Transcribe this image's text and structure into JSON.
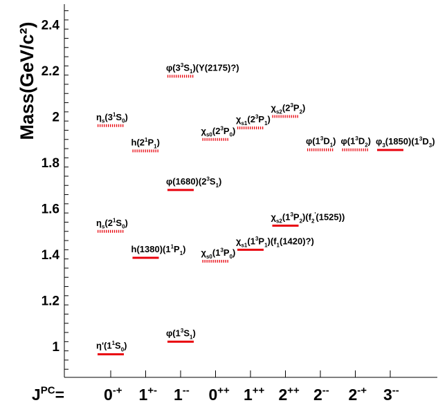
{
  "chart_data": {
    "type": "scatter",
    "ylabel": "Mass(GeV/c²)",
    "ylim": [
      0.82,
      2.5
    ],
    "y_ticks": [
      1.0,
      1.2,
      1.4,
      1.6,
      1.8,
      2.0,
      2.2,
      2.4
    ],
    "y_tick_labels": [
      "1",
      "1.2",
      "1.4",
      "1.6",
      "1.8",
      "2",
      "2.2",
      "2.4"
    ],
    "x_axis_prefix": {
      "base": "J",
      "sup": "PC",
      "tail": "="
    },
    "categories": [
      {
        "base": "0",
        "sup": "-+"
      },
      {
        "base": "1",
        "sup": "+-"
      },
      {
        "base": "1",
        "sup": "--"
      },
      {
        "base": "0",
        "sup": "++"
      },
      {
        "base": "1",
        "sup": "++"
      },
      {
        "base": "2",
        "sup": "++"
      },
      {
        "base": "2",
        "sup": "--"
      },
      {
        "base": "2",
        "sup": "-+"
      },
      {
        "base": "3",
        "sup": "--"
      }
    ],
    "legend_style": {
      "observed": "solid red line",
      "predicted": "dotted red line"
    },
    "colors": {
      "level": "#e8000b",
      "axis": "#000000"
    },
    "levels": [
      {
        "x": 0.0,
        "mass": 0.965,
        "style": "observed",
        "label": [
          [
            "η'(1",
            ""
          ],
          [
            "1",
            "sup"
          ],
          [
            "S",
            ""
          ],
          [
            "0",
            "sub"
          ],
          [
            ")",
            ""
          ]
        ]
      },
      {
        "x": 0.0,
        "mass": 1.5,
        "style": "predicted",
        "label": [
          [
            "η",
            ""
          ],
          [
            "s",
            "sub"
          ],
          [
            "(2",
            ""
          ],
          [
            "1",
            "sup"
          ],
          [
            "S",
            ""
          ],
          [
            "0",
            "sub"
          ],
          [
            ")",
            ""
          ]
        ]
      },
      {
        "x": 0.0,
        "mass": 1.96,
        "style": "predicted",
        "label": [
          [
            "η",
            ""
          ],
          [
            "s",
            "sub"
          ],
          [
            "(3",
            ""
          ],
          [
            "1",
            "sup"
          ],
          [
            "S",
            ""
          ],
          [
            "0",
            "sub"
          ],
          [
            ")",
            ""
          ]
        ]
      },
      {
        "x": 1.0,
        "mass": 1.385,
        "style": "observed",
        "label": [
          [
            "h(1380)(1",
            ""
          ],
          [
            "1",
            "sup"
          ],
          [
            "P",
            ""
          ],
          [
            "1",
            "sub"
          ],
          [
            ")",
            ""
          ]
        ]
      },
      {
        "x": 1.0,
        "mass": 1.85,
        "style": "predicted",
        "label": [
          [
            "h(2",
            ""
          ],
          [
            "1",
            "sup"
          ],
          [
            "P",
            ""
          ],
          [
            "1",
            "sub"
          ],
          [
            ")",
            ""
          ]
        ]
      },
      {
        "x": 2.0,
        "mass": 1.02,
        "style": "observed",
        "label": [
          [
            "φ(1",
            ""
          ],
          [
            "3",
            "sup"
          ],
          [
            "S",
            ""
          ],
          [
            "1",
            "sub"
          ],
          [
            ")",
            ""
          ]
        ]
      },
      {
        "x": 2.0,
        "mass": 1.68,
        "style": "observed",
        "label": [
          [
            "φ(1680)(2",
            ""
          ],
          [
            "3",
            "sup"
          ],
          [
            "S",
            ""
          ],
          [
            "1",
            "sub"
          ],
          [
            ")",
            ""
          ]
        ]
      },
      {
        "x": 2.0,
        "mass": 2.175,
        "style": "predicted",
        "label": [
          [
            "φ(3",
            ""
          ],
          [
            "3",
            "sup"
          ],
          [
            "S",
            ""
          ],
          [
            "1",
            "sub"
          ],
          [
            ")(Y(2175)?)",
            ""
          ]
        ]
      },
      {
        "x": 3.0,
        "mass": 1.37,
        "style": "predicted",
        "label": [
          [
            "χ",
            ""
          ],
          [
            "s0",
            "sub"
          ],
          [
            "(1",
            ""
          ],
          [
            "3",
            "sup"
          ],
          [
            "P",
            ""
          ],
          [
            "0",
            "sub"
          ],
          [
            ")",
            ""
          ]
        ]
      },
      {
        "x": 3.0,
        "mass": 1.9,
        "style": "predicted",
        "label": [
          [
            "χ",
            ""
          ],
          [
            "s0",
            "sub"
          ],
          [
            "(2",
            ""
          ],
          [
            "3",
            "sup"
          ],
          [
            "P",
            ""
          ],
          [
            "0",
            "sub"
          ],
          [
            ")",
            ""
          ]
        ]
      },
      {
        "x": 4.0,
        "mass": 1.42,
        "style": "observed",
        "label": [
          [
            "χ",
            ""
          ],
          [
            "s1",
            "sub"
          ],
          [
            "(1",
            ""
          ],
          [
            "3",
            "sup"
          ],
          [
            "P",
            ""
          ],
          [
            "1",
            "sub"
          ],
          [
            ")(f",
            ""
          ],
          [
            "1",
            "sub"
          ],
          [
            "(1420)?)",
            ""
          ]
        ]
      },
      {
        "x": 4.0,
        "mass": 1.95,
        "style": "predicted",
        "label": [
          [
            "χ",
            ""
          ],
          [
            "s1",
            "sub"
          ],
          [
            "(2",
            ""
          ],
          [
            "3",
            "sup"
          ],
          [
            "P",
            ""
          ],
          [
            "1",
            "sub"
          ],
          [
            ")",
            ""
          ]
        ]
      },
      {
        "x": 5.0,
        "mass": 1.525,
        "style": "observed",
        "label": [
          [
            "χ",
            ""
          ],
          [
            "s2",
            "sub"
          ],
          [
            "(1",
            ""
          ],
          [
            "3",
            "sup"
          ],
          [
            "P",
            ""
          ],
          [
            "2",
            "sub"
          ],
          [
            ")(f",
            ""
          ],
          [
            "2",
            "sub"
          ],
          [
            "'",
            "sup"
          ],
          [
            "(1525))",
            ""
          ]
        ]
      },
      {
        "x": 5.0,
        "mass": 2.0,
        "style": "predicted",
        "label": [
          [
            "χ",
            ""
          ],
          [
            "s2",
            "sub"
          ],
          [
            "(2",
            ""
          ],
          [
            "3",
            "sup"
          ],
          [
            "P",
            ""
          ],
          [
            "2",
            "sub"
          ],
          [
            ")",
            ""
          ]
        ]
      },
      {
        "x": 6.0,
        "mass": 1.855,
        "style": "predicted",
        "label": [
          [
            "φ(1",
            ""
          ],
          [
            "3",
            "sup"
          ],
          [
            "D",
            ""
          ],
          [
            "1",
            "sub"
          ],
          [
            ")",
            ""
          ]
        ]
      },
      {
        "x": 7.0,
        "mass": 1.855,
        "style": "predicted",
        "label": [
          [
            "φ(1",
            ""
          ],
          [
            "3",
            "sup"
          ],
          [
            "D",
            ""
          ],
          [
            "2",
            "sub"
          ],
          [
            ")",
            ""
          ]
        ]
      },
      {
        "x": 8.0,
        "mass": 1.854,
        "style": "observed",
        "label": [
          [
            "φ",
            ""
          ],
          [
            "3",
            "sub"
          ],
          [
            "(1850)(1",
            ""
          ],
          [
            "3",
            "sup"
          ],
          [
            "D",
            ""
          ],
          [
            "3",
            "sub"
          ],
          [
            ")",
            ""
          ]
        ]
      }
    ]
  }
}
